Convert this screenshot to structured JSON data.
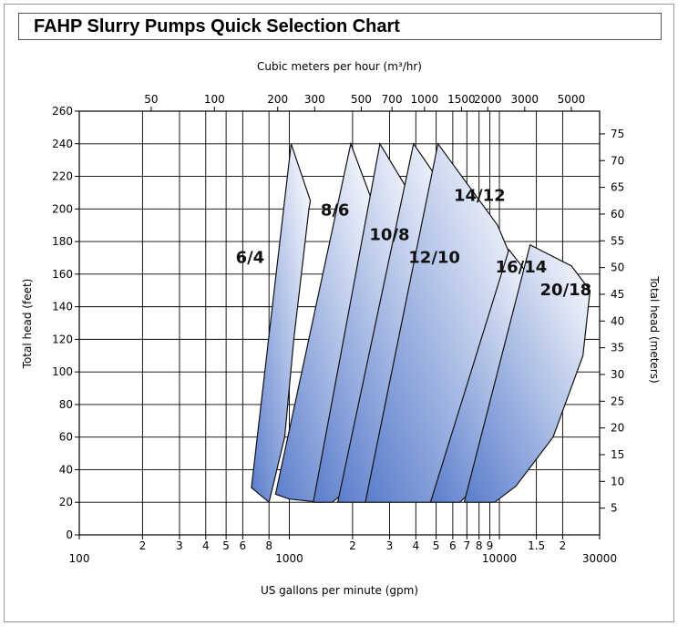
{
  "title": "FAHP Slurry Pumps Quick Selection Chart",
  "chart_data": {
    "type": "area",
    "top_axis_label": "Cubic meters per hour (m³/hr)",
    "top_ticks": [
      {
        "label": "50",
        "gpm": 220
      },
      {
        "label": "100",
        "gpm": 440
      },
      {
        "label": "200",
        "gpm": 880
      },
      {
        "label": "300",
        "gpm": 1320
      },
      {
        "label": "500",
        "gpm": 2200
      },
      {
        "label": "700",
        "gpm": 3080
      },
      {
        "label": "1000",
        "gpm": 4400
      },
      {
        "label": "1500",
        "gpm": 6600
      },
      {
        "label": "2000",
        "gpm": 8800
      },
      {
        "label": "3000",
        "gpm": 13200
      },
      {
        "label": "5000",
        "gpm": 22000
      }
    ],
    "xlabel": "US gallons per minute (gpm)",
    "x_scale": "log",
    "x_range": [
      100,
      30000
    ],
    "bottom_ticks": [
      {
        "label": "100",
        "gpm": 100
      },
      {
        "label": "2",
        "gpm": 200
      },
      {
        "label": "3",
        "gpm": 300
      },
      {
        "label": "4",
        "gpm": 400
      },
      {
        "label": "5",
        "gpm": 500
      },
      {
        "label": "6",
        "gpm": 600
      },
      {
        "label": "8",
        "gpm": 800
      },
      {
        "label": "1000",
        "gpm": 1000
      },
      {
        "label": "2",
        "gpm": 2000
      },
      {
        "label": "3",
        "gpm": 3000
      },
      {
        "label": "4",
        "gpm": 4000
      },
      {
        "label": "5",
        "gpm": 5000
      },
      {
        "label": "6",
        "gpm": 6000
      },
      {
        "label": "7",
        "gpm": 7000
      },
      {
        "label": "8",
        "gpm": 8000
      },
      {
        "label": "9",
        "gpm": 9000
      },
      {
        "label": "10000",
        "gpm": 10000
      },
      {
        "label": "1.5",
        "gpm": 15000
      },
      {
        "label": "2",
        "gpm": 20000
      },
      {
        "label": "30000",
        "gpm": 30000
      }
    ],
    "ylabel": "Total head (feet)",
    "ylim": [
      0,
      260
    ],
    "y_ticks": [
      "0",
      "20",
      "40",
      "60",
      "80",
      "100",
      "120",
      "140",
      "160",
      "180",
      "200",
      "220",
      "240",
      "260"
    ],
    "y2label": "Total head (meters)",
    "y2_ticks": [
      "5",
      "10",
      "15",
      "20",
      "25",
      "30",
      "35",
      "40",
      "45",
      "50",
      "55",
      "60",
      "65",
      "70",
      "75"
    ],
    "grid": true,
    "fill_colors": [
      "#5a7dcc",
      "#ffffff"
    ],
    "series": [
      {
        "name": "6/4",
        "label_gpm": 650,
        "label_head": 167,
        "outline": [
          [
            660,
            29
          ],
          [
            1020,
            240
          ],
          [
            1260,
            205
          ],
          [
            1240,
            200
          ],
          [
            1050,
            120
          ],
          [
            950,
            60
          ],
          [
            800,
            20
          ]
        ]
      },
      {
        "name": "8/6",
        "label_gpm": 1650,
        "label_head": 196,
        "outline": [
          [
            860,
            25
          ],
          [
            1960,
            240
          ],
          [
            2560,
            200
          ],
          [
            2500,
            160
          ],
          [
            2000,
            60
          ],
          [
            1400,
            20
          ],
          [
            1000,
            22
          ]
        ]
      },
      {
        "name": "10/8",
        "label_gpm": 3000,
        "label_head": 181,
        "outline": [
          [
            1300,
            20
          ],
          [
            2700,
            240
          ],
          [
            4150,
            200
          ],
          [
            3900,
            150
          ],
          [
            3200,
            80
          ],
          [
            2500,
            40
          ],
          [
            1600,
            20
          ]
        ]
      },
      {
        "name": "12/10",
        "label_gpm": 4900,
        "label_head": 167,
        "outline": [
          [
            1700,
            20
          ],
          [
            3900,
            240
          ],
          [
            6000,
            205
          ],
          [
            5700,
            150
          ],
          [
            4900,
            90
          ],
          [
            3800,
            40
          ],
          [
            2300,
            20
          ]
        ]
      },
      {
        "name": "14/12",
        "label_gpm": 8050,
        "label_head": 205,
        "outline": [
          [
            2300,
            20
          ],
          [
            5100,
            240
          ],
          [
            9800,
            190
          ],
          [
            11400,
            170
          ],
          [
            10000,
            110
          ],
          [
            7500,
            50
          ],
          [
            4700,
            20
          ]
        ]
      },
      {
        "name": "16/14",
        "label_gpm": 12700,
        "label_head": 161,
        "outline": [
          [
            4700,
            20
          ],
          [
            11100,
            175
          ],
          [
            15700,
            150
          ],
          [
            14000,
            90
          ],
          [
            10000,
            45
          ],
          [
            6500,
            20
          ]
        ]
      },
      {
        "name": "20/18",
        "label_gpm": 20700,
        "label_head": 147,
        "outline": [
          [
            6800,
            20
          ],
          [
            14000,
            178
          ],
          [
            22000,
            165
          ],
          [
            27000,
            150
          ],
          [
            25000,
            110
          ],
          [
            18000,
            60
          ],
          [
            12000,
            30
          ],
          [
            9500,
            20
          ]
        ]
      }
    ]
  }
}
